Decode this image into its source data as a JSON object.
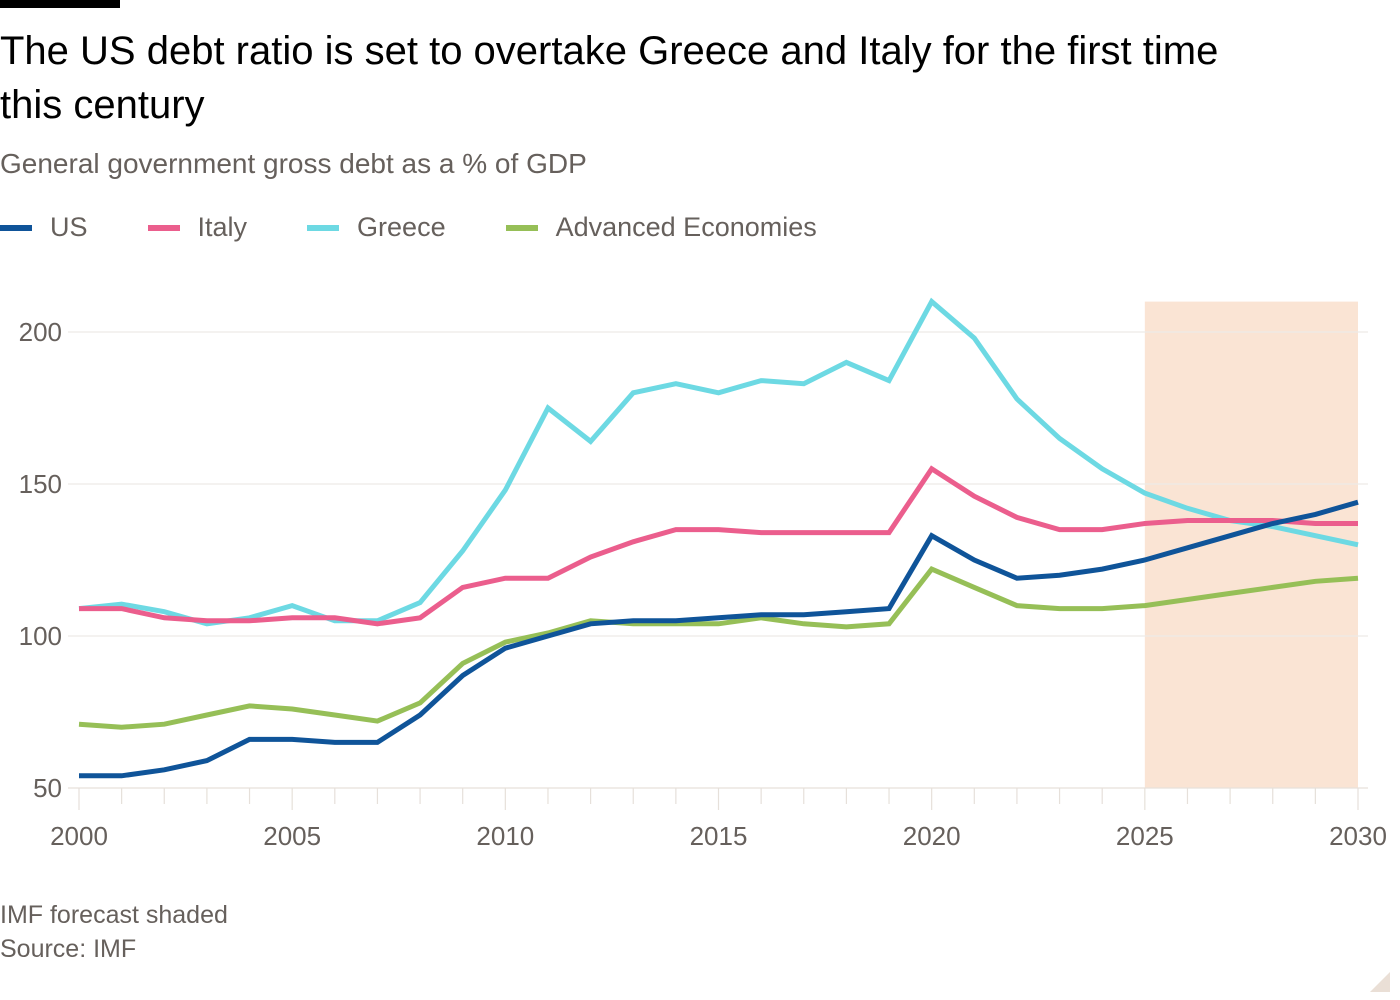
{
  "header": {
    "title": "The US debt ratio is set to overtake Greece and Italy for the first time this century",
    "subtitle": "General government gross debt as a % of GDP"
  },
  "footer": {
    "note": "IMF forecast shaded",
    "source": "Source: IMF"
  },
  "chart_data": {
    "type": "line",
    "title": "The US debt ratio is set to overtake Greece and Italy for the first time this century",
    "subtitle": "General government gross debt as a % of GDP",
    "xlabel": "",
    "ylabel": "",
    "x": [
      2000,
      2001,
      2002,
      2003,
      2004,
      2005,
      2006,
      2007,
      2008,
      2009,
      2010,
      2011,
      2012,
      2013,
      2014,
      2015,
      2016,
      2017,
      2018,
      2019,
      2020,
      2021,
      2022,
      2023,
      2024,
      2025,
      2026,
      2027,
      2028,
      2029,
      2030
    ],
    "xlim": [
      2000,
      2030
    ],
    "ylim": [
      50,
      210
    ],
    "x_ticks": [
      "2000",
      "2005",
      "2010",
      "2015",
      "2020",
      "2025",
      "2030"
    ],
    "y_ticks": [
      "50",
      "100",
      "150",
      "200"
    ],
    "grid": true,
    "legend_position": "top-left",
    "shaded_region": {
      "label": "IMF forecast",
      "x_start": 2025,
      "x_end": 2030,
      "color": "#fae4d4"
    },
    "series": [
      {
        "name": "US",
        "color": "#0f5499",
        "values": [
          54,
          54,
          56,
          59,
          66,
          66,
          65,
          65,
          74,
          87,
          96,
          100,
          104,
          105,
          105,
          106,
          107,
          107,
          108,
          109,
          133,
          125,
          119,
          120,
          122,
          125,
          129,
          133,
          137,
          140,
          144
        ]
      },
      {
        "name": "Italy",
        "color": "#eb5e8d",
        "values": [
          109,
          109,
          106,
          105,
          105,
          106,
          106,
          104,
          106,
          116,
          119,
          119,
          126,
          131,
          135,
          135,
          134,
          134,
          134,
          134,
          155,
          146,
          139,
          135,
          135,
          137,
          138,
          138,
          138,
          137,
          137
        ]
      },
      {
        "name": "Greece",
        "color": "#6dd9e3",
        "values": [
          109,
          110.5,
          108,
          104,
          106,
          110,
          105,
          105,
          111,
          128,
          148,
          175,
          164,
          180,
          183,
          180,
          184,
          183,
          190,
          184,
          210,
          198,
          178,
          165,
          155,
          147,
          142,
          138,
          136,
          133,
          130
        ]
      },
      {
        "name": "Advanced Economies",
        "color": "#96bf57",
        "values": [
          71,
          70,
          71,
          74,
          77,
          76,
          74,
          72,
          78,
          91,
          98,
          101,
          105,
          104,
          104,
          104,
          106,
          104,
          103,
          104,
          122,
          116,
          110,
          109,
          109,
          110,
          112,
          114,
          116,
          118,
          119
        ]
      }
    ]
  }
}
